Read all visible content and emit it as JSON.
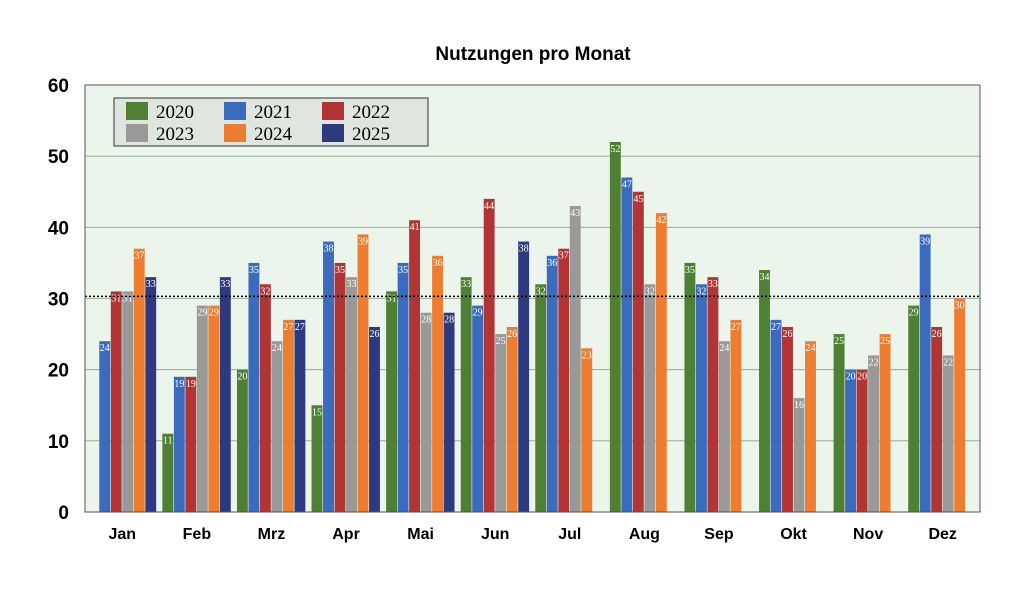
{
  "chart_data": {
    "type": "bar",
    "title": "Nutzungen pro Monat",
    "xlabel": "",
    "ylabel": "",
    "ylim": [
      0,
      60
    ],
    "yticks": [
      0,
      10,
      20,
      30,
      40,
      50,
      60
    ],
    "grid": true,
    "legend_position": "top-left",
    "reference_line": 30.3,
    "categories": [
      "Jan",
      "Feb",
      "Mrz",
      "Apr",
      "Mai",
      "Jun",
      "Jul",
      "Aug",
      "Sep",
      "Okt",
      "Nov",
      "Dez"
    ],
    "series": [
      {
        "name": "2020",
        "color": "#4f7f34",
        "values": [
          null,
          11,
          20,
          15,
          31,
          33,
          32,
          52,
          35,
          34,
          25,
          29
        ]
      },
      {
        "name": "2021",
        "color": "#3a6bbd",
        "values": [
          24,
          19,
          35,
          38,
          35,
          29,
          36,
          47,
          32,
          27,
          20,
          39
        ]
      },
      {
        "name": "2022",
        "color": "#b23535",
        "values": [
          31,
          19,
          32,
          35,
          41,
          44,
          37,
          45,
          33,
          26,
          20,
          26
        ]
      },
      {
        "name": "2023",
        "color": "#999999",
        "values": [
          31,
          29,
          24,
          33,
          28,
          25,
          43,
          32,
          24,
          16,
          22,
          22
        ]
      },
      {
        "name": "2024",
        "color": "#ed7d31",
        "values": [
          37,
          29,
          27,
          39,
          36,
          26,
          23,
          42,
          27,
          24,
          25,
          30
        ]
      },
      {
        "name": "2025",
        "color": "#2e3a80",
        "values": [
          33,
          33,
          27,
          26,
          28,
          38,
          null,
          null,
          null,
          null,
          null,
          null
        ]
      }
    ]
  }
}
